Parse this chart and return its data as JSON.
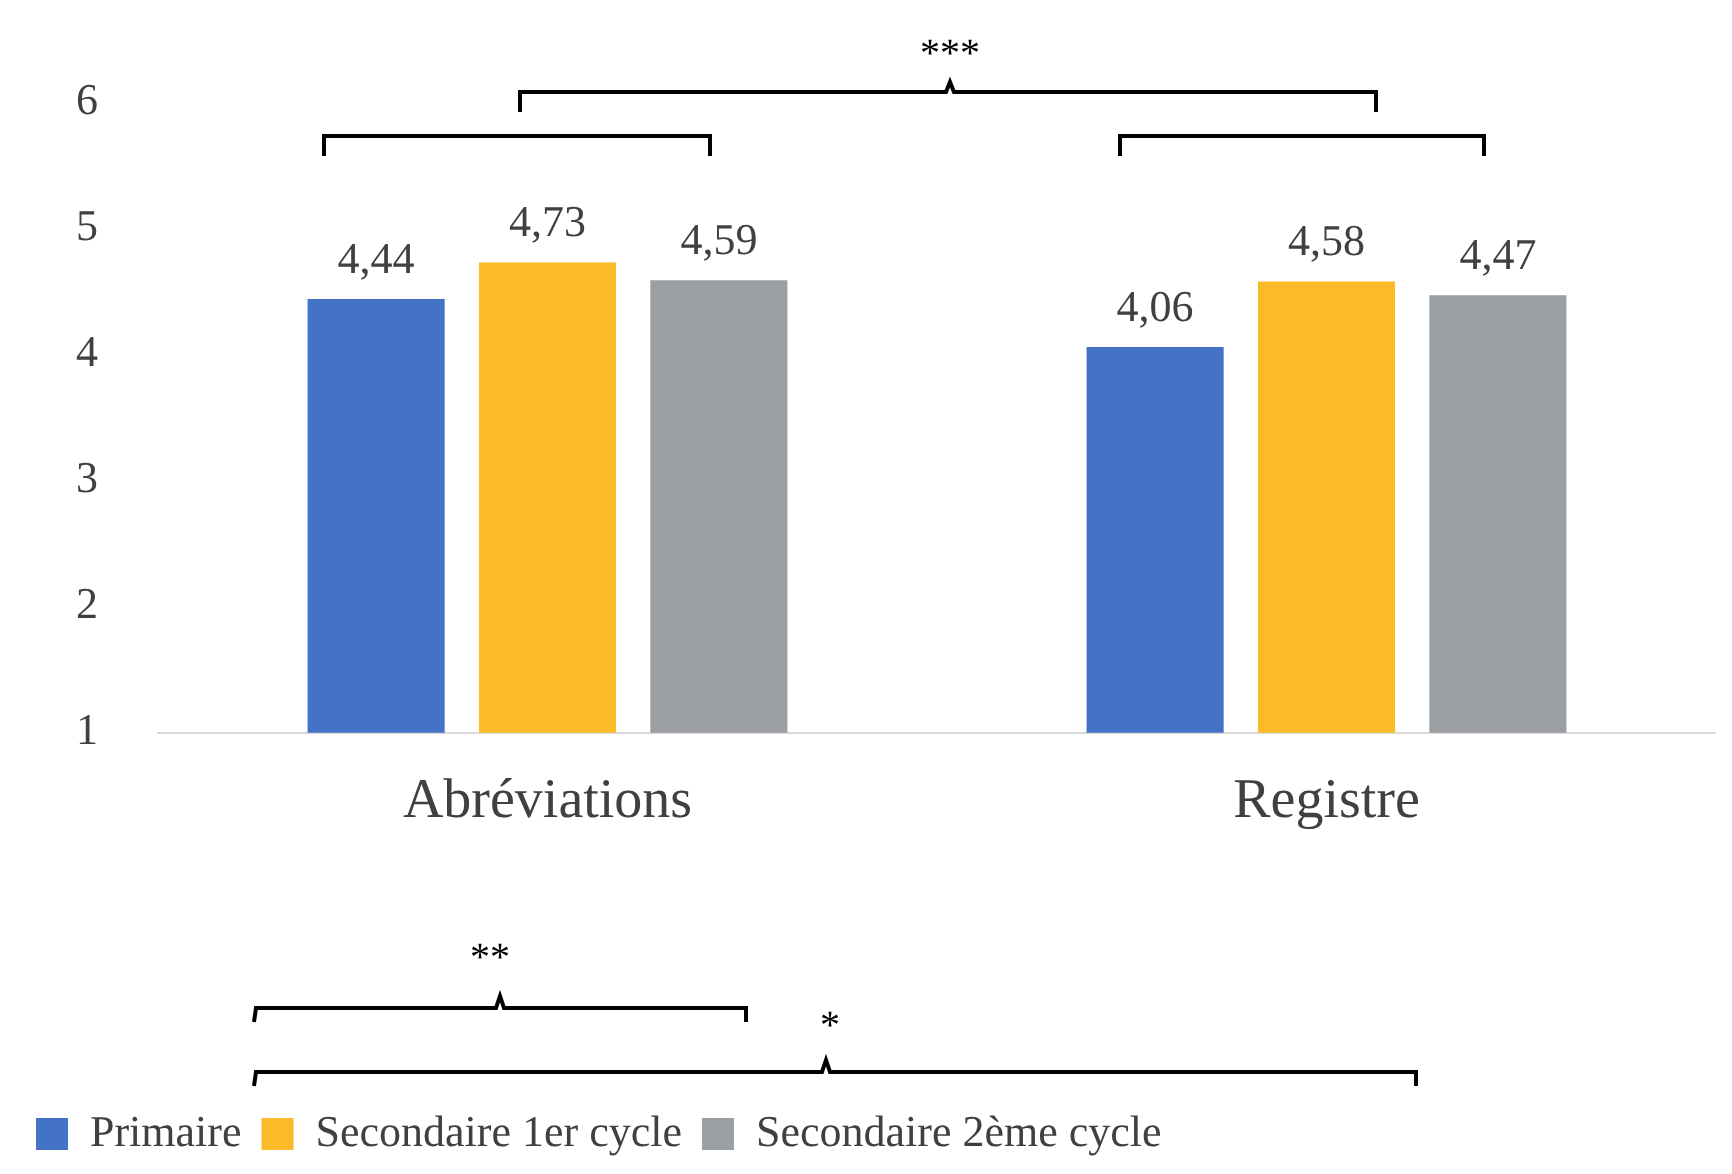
{
  "chart_data": {
    "type": "bar",
    "categories": [
      "Abréviations",
      "Registre"
    ],
    "series": [
      {
        "name": "Primaire",
        "color": "#4472c4",
        "values": [
          4.44,
          4.06
        ],
        "value_labels": [
          "4,44",
          "4,06"
        ]
      },
      {
        "name": "Secondaire 1er cycle",
        "color": "#fbba27",
        "values": [
          4.73,
          4.58
        ],
        "value_labels": [
          "4,73",
          "4,58"
        ]
      },
      {
        "name": "Secondaire 2ème cycle",
        "color": "#9b9ea3",
        "values": [
          4.59,
          4.47
        ],
        "value_labels": [
          "4,59",
          "4,47"
        ]
      }
    ],
    "ylim": [
      1,
      6
    ],
    "yticks": [
      1,
      2,
      3,
      4,
      5,
      6
    ],
    "grid": false,
    "legend": "bottom",
    "annotations": [
      "***",
      "**",
      "*"
    ]
  }
}
